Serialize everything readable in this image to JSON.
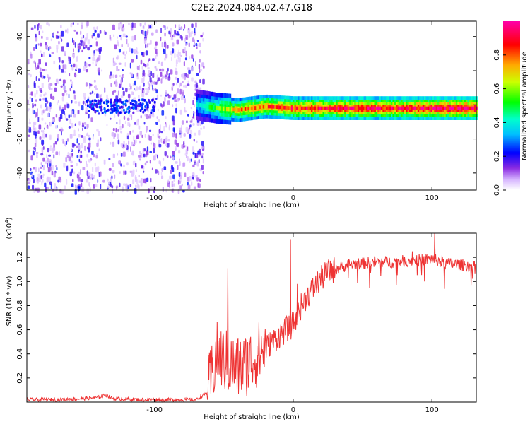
{
  "title": "C2E2.2024.084.02.47.G18",
  "chart_data": [
    {
      "type": "heatmap",
      "title": "C2E2.2024.084.02.47.G18",
      "xlabel": "Height of straight line (km)",
      "ylabel": "Frequency (Hz)",
      "xlim": [
        -192,
        132
      ],
      "ylim": [
        -50,
        49
      ],
      "x_ticks": [
        -100,
        0,
        100
      ],
      "x_tick_labels": [
        "-100",
        "0",
        "100"
      ],
      "y_ticks": [
        -40,
        -20,
        0,
        20,
        40
      ],
      "y_tick_labels": [
        "-40",
        "-20",
        "0",
        "20",
        "40"
      ],
      "colorbar": {
        "label": "Normalized spectral amplitude",
        "range": [
          0,
          1
        ],
        "ticks": [
          0.0,
          0.2,
          0.4,
          0.6,
          0.8
        ],
        "tick_labels": [
          "0.0",
          "0.2",
          "0.4",
          "0.6",
          "0.8"
        ],
        "colormap": [
          "#ffffff",
          "#9b30ff",
          "#0000ff",
          "#00ffff",
          "#00ff00",
          "#ffff00",
          "#ff8000",
          "#ff0000",
          "#ff00ff"
        ]
      },
      "noise_region": {
        "x_range": [
          -192,
          -65
        ],
        "amplitude": 0.15,
        "gap_x": -137
      },
      "signal_track": {
        "description_points": [
          {
            "x": -70,
            "freq": 0,
            "amp": 0.35
          },
          {
            "x": -55,
            "freq": -2,
            "amp": 0.55
          },
          {
            "x": -40,
            "freq": -3,
            "amp": 0.75
          },
          {
            "x": -20,
            "freq": -1,
            "amp": 0.8
          },
          {
            "x": 0,
            "freq": -2,
            "amp": 0.85
          },
          {
            "x": 40,
            "freq": -2,
            "amp": 0.9
          },
          {
            "x": 80,
            "freq": -2,
            "amp": 0.9
          },
          {
            "x": 100,
            "freq": -2,
            "amp": 0.95
          },
          {
            "x": 132,
            "freq": -2,
            "amp": 0.95
          }
        ]
      },
      "grid": false
    },
    {
      "type": "line",
      "xlabel": "Height of straight line (km)",
      "ylabel": "SNR (10 * v/v)",
      "y_scale_label": "(x10",
      "y_scale_exp": "4",
      "y_scale_close": ")",
      "xlim": [
        -192,
        132
      ],
      "ylim": [
        0,
        1.4
      ],
      "x_ticks": [
        -100,
        0,
        100
      ],
      "x_tick_labels": [
        "-100",
        "0",
        "100"
      ],
      "y_ticks": [
        0.2,
        0.4,
        0.6,
        0.8,
        1.0,
        1.2
      ],
      "y_tick_labels": [
        "0.2",
        "0.4",
        "0.6",
        "0.8",
        "1.0",
        "1.2"
      ],
      "color": "#ee3333",
      "series": [
        {
          "x": [
            -192,
            -170,
            -150,
            -140,
            -135,
            -130,
            -110,
            -90,
            -70,
            -62,
            -58,
            -55,
            -50,
            -45,
            -40,
            -35,
            -30,
            -25,
            -20,
            -15,
            -10,
            -5,
            -2,
            0,
            2,
            5,
            10,
            15,
            20,
            25,
            30,
            35,
            40,
            50,
            60,
            70,
            80,
            90,
            95,
            100,
            105,
            110,
            120,
            132
          ],
          "values": [
            0.02,
            0.02,
            0.03,
            0.04,
            0.06,
            0.03,
            0.02,
            0.02,
            0.02,
            0.08,
            0.25,
            0.4,
            0.35,
            0.3,
            0.28,
            0.3,
            0.35,
            0.4,
            0.45,
            0.5,
            0.55,
            0.6,
            0.62,
            0.65,
            0.7,
            0.78,
            0.88,
            0.95,
            1.02,
            1.08,
            1.1,
            1.12,
            1.14,
            1.15,
            1.16,
            1.16,
            1.17,
            1.18,
            1.18,
            1.19,
            1.17,
            1.15,
            1.14,
            1.12
          ]
        }
      ],
      "spikes": [
        {
          "x": -47,
          "value": 1.11
        },
        {
          "x": -2,
          "value": 1.35
        },
        {
          "x": 3,
          "value": 0.98
        },
        {
          "x": 102,
          "value": 1.4
        },
        {
          "x": 86,
          "value": 1.25
        }
      ],
      "grid": false
    }
  ]
}
